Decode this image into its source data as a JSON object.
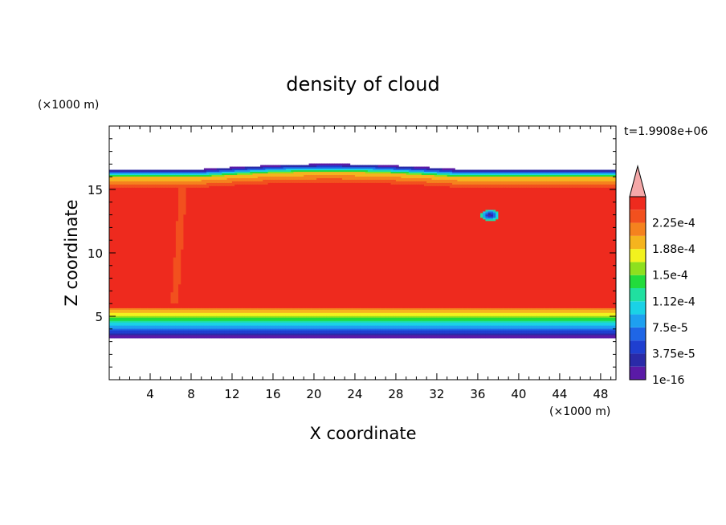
{
  "chart_data": {
    "type": "heatmap",
    "title": "density of cloud",
    "xlabel": "X coordinate",
    "ylabel": "Z coordinate",
    "x_unit": "(×1000 m)",
    "y_unit": "(×1000 m)",
    "time_label": "t=1.9908e+06",
    "xlim": [
      0,
      49.5
    ],
    "ylim": [
      0,
      20
    ],
    "x_ticks": [
      4,
      8,
      12,
      16,
      20,
      24,
      28,
      32,
      36,
      40,
      44,
      48
    ],
    "y_ticks": [
      5,
      10,
      15
    ],
    "colorbar": {
      "levels": [
        {
          "label": "1e-16",
          "color": "#5a1aa6"
        },
        {
          "label": "",
          "color": "#2a2aa8"
        },
        {
          "label": "3.75e-5",
          "color": "#1f3fd0"
        },
        {
          "label": "",
          "color": "#1f66e6"
        },
        {
          "label": "7.5e-5",
          "color": "#1ea0f0"
        },
        {
          "label": "",
          "color": "#1ad2e6"
        },
        {
          "label": "1.12e-4",
          "color": "#20e0a0"
        },
        {
          "label": "",
          "color": "#22dc3c"
        },
        {
          "label": "1.5e-4",
          "color": "#8ee01e"
        },
        {
          "label": "",
          "color": "#f2f21e"
        },
        {
          "label": "1.88e-4",
          "color": "#f5b41e"
        },
        {
          "label": "",
          "color": "#f5821e"
        },
        {
          "label": "2.25e-4",
          "color": "#f2501e"
        },
        {
          "label": "",
          "color": "#ee2a1e"
        }
      ],
      "extend_color": "#f5a8a8"
    },
    "field_description": {
      "cloud_base_z": 3.3,
      "cloud_top_z_typical": 16.6,
      "dome_peak_z": 17.0,
      "dome_x_range": [
        9,
        34
      ],
      "vortex_center": [
        37.2,
        13.0
      ]
    }
  }
}
